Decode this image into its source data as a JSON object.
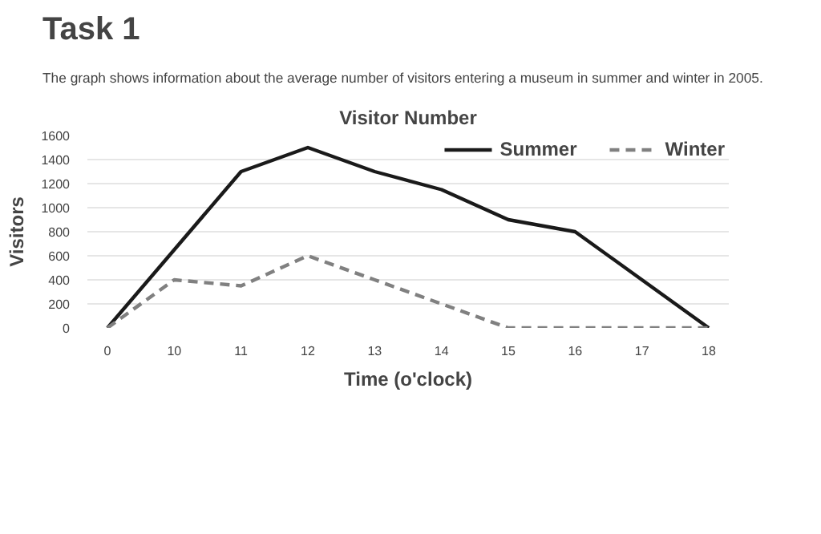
{
  "chart_data": {
    "type": "line",
    "title": "Visitor Number",
    "xlabel": "Time (o'clock)",
    "ylabel": "Visitors",
    "annotations": [
      "Task 1",
      "The graph shows information about the average number of visitors entering a museum in summer and winter in 2005."
    ],
    "categories": [
      "0",
      "10",
      "11",
      "12",
      "13",
      "14",
      "15",
      "16",
      "17",
      "18"
    ],
    "series": [
      {
        "name": "Summer",
        "color": "#1a1a1a",
        "line_style": "solid",
        "values": [
          0,
          650,
          1300,
          1500,
          1300,
          1150,
          900,
          800,
          400,
          0
        ]
      },
      {
        "name": "Winter",
        "color": "#808080",
        "line_style": "dashed",
        "values": [
          0,
          400,
          350,
          600,
          400,
          200,
          0,
          0,
          0,
          0
        ]
      }
    ],
    "ylim": [
      0,
      1600
    ],
    "yticks": [
      0,
      200,
      400,
      600,
      800,
      1000,
      1200,
      1400,
      1600
    ],
    "grid": "y",
    "legend": "top right",
    "marker": "none"
  }
}
